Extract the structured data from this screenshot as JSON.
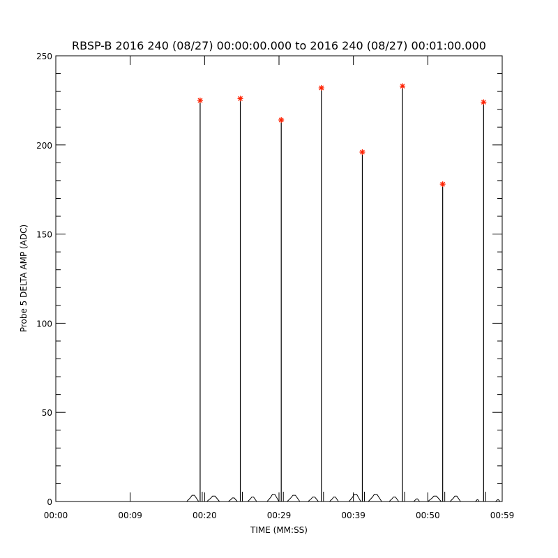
{
  "chart_data": {
    "type": "line",
    "title": "RBSP-B 2016 240 (08/27) 00:00:00.000 to 2016 240 (08/27) 00:01:00.000",
    "xlabel": "TIME (MM:SS)",
    "ylabel": "Probe 5 DELTA AMP (ADC)",
    "xlim": [
      0,
      60
    ],
    "ylim": [
      0,
      250
    ],
    "grid": false,
    "x_ticks": [
      {
        "value": 0,
        "label": "00:00"
      },
      {
        "value": 10,
        "label": "00:09"
      },
      {
        "value": 20,
        "label": "00:20"
      },
      {
        "value": 30,
        "label": "00:29"
      },
      {
        "value": 40,
        "label": "00:39"
      },
      {
        "value": 50,
        "label": "00:50"
      },
      {
        "value": 60,
        "label": "00:59"
      }
    ],
    "y_ticks": [
      {
        "value": 0,
        "label": "0"
      },
      {
        "value": 50,
        "label": "50"
      },
      {
        "value": 100,
        "label": "100"
      },
      {
        "value": 150,
        "label": "150"
      },
      {
        "value": 200,
        "label": "200"
      },
      {
        "value": 250,
        "label": "250"
      }
    ],
    "y_minor_step": 10,
    "colors": {
      "trace": "#000000",
      "peak_marker": "#ff2000"
    },
    "peaks": {
      "x": [
        19.4,
        24.8,
        30.3,
        35.7,
        41.2,
        46.6,
        52.0,
        57.5
      ],
      "y": [
        225,
        226,
        214,
        232,
        196,
        233,
        178,
        224
      ],
      "marker": "asterisk"
    },
    "baseline_bumps": [
      [
        17.6,
        19.2,
        3.5
      ],
      [
        20.3,
        22.0,
        3
      ],
      [
        23.2,
        24.4,
        2
      ],
      [
        25.8,
        27.0,
        2.5
      ],
      [
        28.4,
        30.0,
        4
      ],
      [
        31.1,
        32.8,
        3.5
      ],
      [
        33.9,
        35.3,
        2.5
      ],
      [
        36.8,
        38.0,
        2.5
      ],
      [
        39.4,
        41.0,
        4
      ],
      [
        42.0,
        43.8,
        4
      ],
      [
        44.8,
        46.1,
        2.5
      ],
      [
        48.1,
        48.9,
        1.5
      ],
      [
        50.0,
        51.8,
        3
      ],
      [
        53.0,
        54.4,
        3
      ],
      [
        56.4,
        56.9,
        1
      ],
      [
        59.1,
        59.7,
        1
      ]
    ]
  }
}
